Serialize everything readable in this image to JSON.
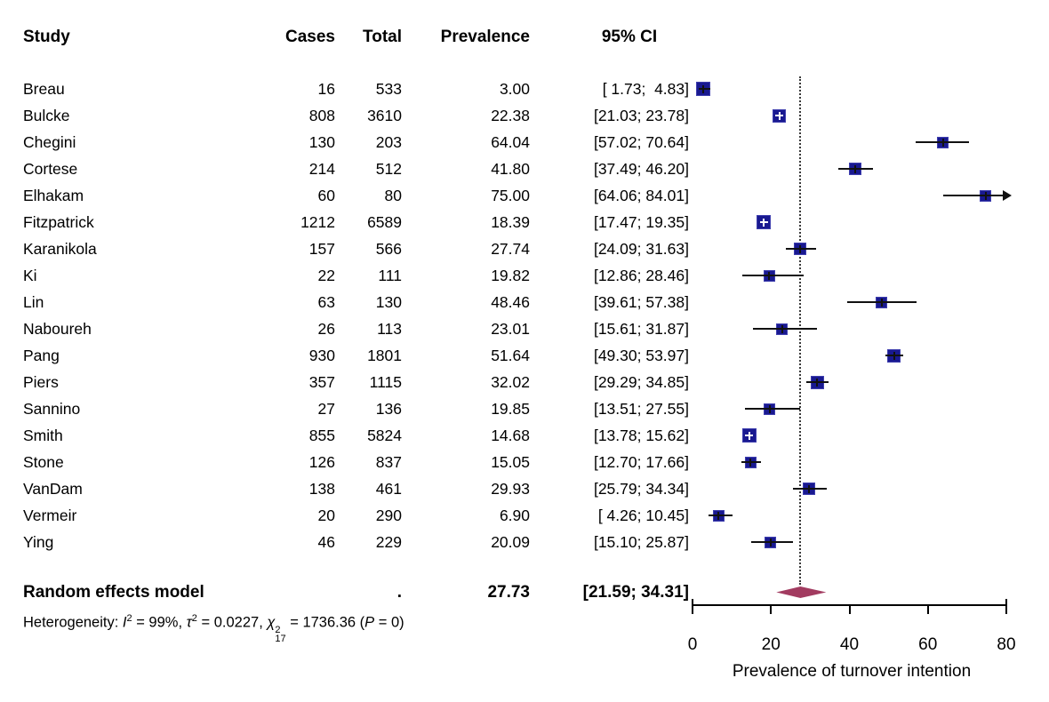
{
  "header": {
    "study": "Study",
    "cases": "Cases",
    "total": "Total",
    "prevalence": "Prevalence",
    "ci": "95% CI"
  },
  "pooled": {
    "label": "Random effects model",
    "cases_total": ".",
    "prevalence": "27.73",
    "ci": "[21.59; 34.31]",
    "est": 27.73,
    "lo": 21.59,
    "hi": 34.31
  },
  "heterogeneity": {
    "prefix": "Heterogeneity: ",
    "i_label": "I",
    "i_sup": "2",
    "seg1": " = 99%, ",
    "tau": "τ",
    "tau_sup": "2",
    "seg2": " = 0.0227, ",
    "chi": "χ",
    "chi_sup": "2",
    "chi_sub": "17",
    "seg3": " = 1736.36 (",
    "p_label": "P",
    "seg4": " = 0)"
  },
  "chart_data": {
    "type": "forest",
    "xlabel": "Prevalence of turnover intention",
    "x_ticks": [
      0,
      20,
      40,
      60,
      80
    ],
    "xlim": [
      0,
      80
    ],
    "ref_line": 27.73,
    "square_color": "#191990",
    "diamond_color": "#a23b60",
    "studies": [
      {
        "study": "Breau",
        "cases": "16",
        "total": "533",
        "prevalence": "3.00",
        "ci": "[ 1.73;  4.83]",
        "est": 3.0,
        "lo": 1.73,
        "hi": 4.83,
        "size": 16,
        "plus": "black",
        "arrow": false
      },
      {
        "study": "Bulcke",
        "cases": "808",
        "total": "3610",
        "prevalence": "22.38",
        "ci": "[21.03; 23.78]",
        "est": 22.38,
        "lo": 21.03,
        "hi": 23.78,
        "size": 15,
        "plus": "white",
        "arrow": false
      },
      {
        "study": "Chegini",
        "cases": "130",
        "total": "203",
        "prevalence": "64.04",
        "ci": "[57.02; 70.64]",
        "est": 64.04,
        "lo": 57.02,
        "hi": 70.64,
        "size": 13,
        "plus": "black",
        "arrow": false
      },
      {
        "study": "Cortese",
        "cases": "214",
        "total": "512",
        "prevalence": "41.80",
        "ci": "[37.49; 46.20]",
        "est": 41.8,
        "lo": 37.49,
        "hi": 46.2,
        "size": 14,
        "plus": "black",
        "arrow": false
      },
      {
        "study": "Elhakam",
        "cases": "60",
        "total": "80",
        "prevalence": "75.00",
        "ci": "[64.06; 84.01]",
        "est": 75.0,
        "lo": 64.06,
        "hi": 84.01,
        "size": 13,
        "plus": "black",
        "arrow": true
      },
      {
        "study": "Fitzpatrick",
        "cases": "1212",
        "total": "6589",
        "prevalence": "18.39",
        "ci": "[17.47; 19.35]",
        "est": 18.39,
        "lo": 17.47,
        "hi": 19.35,
        "size": 16,
        "plus": "white",
        "arrow": false
      },
      {
        "study": "Karanikola",
        "cases": "157",
        "total": "566",
        "prevalence": "27.74",
        "ci": "[24.09; 31.63]",
        "est": 27.74,
        "lo": 24.09,
        "hi": 31.63,
        "size": 14,
        "plus": "black",
        "arrow": false
      },
      {
        "study": "Ki",
        "cases": "22",
        "total": "111",
        "prevalence": "19.82",
        "ci": "[12.86; 28.46]",
        "est": 19.82,
        "lo": 12.86,
        "hi": 28.46,
        "size": 13,
        "plus": "black",
        "arrow": false
      },
      {
        "study": "Lin",
        "cases": "63",
        "total": "130",
        "prevalence": "48.46",
        "ci": "[39.61; 57.38]",
        "est": 48.46,
        "lo": 39.61,
        "hi": 57.38,
        "size": 13,
        "plus": "black",
        "arrow": false
      },
      {
        "study": "Naboureh",
        "cases": "26",
        "total": "113",
        "prevalence": "23.01",
        "ci": "[15.61; 31.87]",
        "est": 23.01,
        "lo": 15.61,
        "hi": 31.87,
        "size": 13,
        "plus": "black",
        "arrow": false
      },
      {
        "study": "Pang",
        "cases": "930",
        "total": "1801",
        "prevalence": "51.64",
        "ci": "[49.30; 53.97]",
        "est": 51.64,
        "lo": 49.3,
        "hi": 53.97,
        "size": 15,
        "plus": "black",
        "arrow": false
      },
      {
        "study": "Piers",
        "cases": "357",
        "total": "1115",
        "prevalence": "32.02",
        "ci": "[29.29; 34.85]",
        "est": 32.02,
        "lo": 29.29,
        "hi": 34.85,
        "size": 15,
        "plus": "black",
        "arrow": false
      },
      {
        "study": "Sannino",
        "cases": "27",
        "total": "136",
        "prevalence": "19.85",
        "ci": "[13.51; 27.55]",
        "est": 19.85,
        "lo": 13.51,
        "hi": 27.55,
        "size": 13,
        "plus": "black",
        "arrow": false
      },
      {
        "study": "Smith",
        "cases": "855",
        "total": "5824",
        "prevalence": "14.68",
        "ci": "[13.78; 15.62]",
        "est": 14.68,
        "lo": 13.78,
        "hi": 15.62,
        "size": 16,
        "plus": "white",
        "arrow": false
      },
      {
        "study": "Stone",
        "cases": "126",
        "total": "837",
        "prevalence": "15.05",
        "ci": "[12.70; 17.66]",
        "est": 15.05,
        "lo": 12.7,
        "hi": 17.66,
        "size": 13,
        "plus": "black",
        "arrow": false
      },
      {
        "study": "VanDam",
        "cases": "138",
        "total": "461",
        "prevalence": "29.93",
        "ci": "[25.79; 34.34]",
        "est": 29.93,
        "lo": 25.79,
        "hi": 34.34,
        "size": 14,
        "plus": "black",
        "arrow": false
      },
      {
        "study": "Vermeir",
        "cases": "20",
        "total": "290",
        "prevalence": "6.90",
        "ci": "[ 4.26; 10.45]",
        "est": 6.9,
        "lo": 4.26,
        "hi": 10.45,
        "size": 13,
        "plus": "black",
        "arrow": false
      },
      {
        "study": "Ying",
        "cases": "46",
        "total": "229",
        "prevalence": "20.09",
        "ci": "[15.10; 25.87]",
        "est": 20.09,
        "lo": 15.1,
        "hi": 25.87,
        "size": 13,
        "plus": "black",
        "arrow": false
      }
    ]
  }
}
